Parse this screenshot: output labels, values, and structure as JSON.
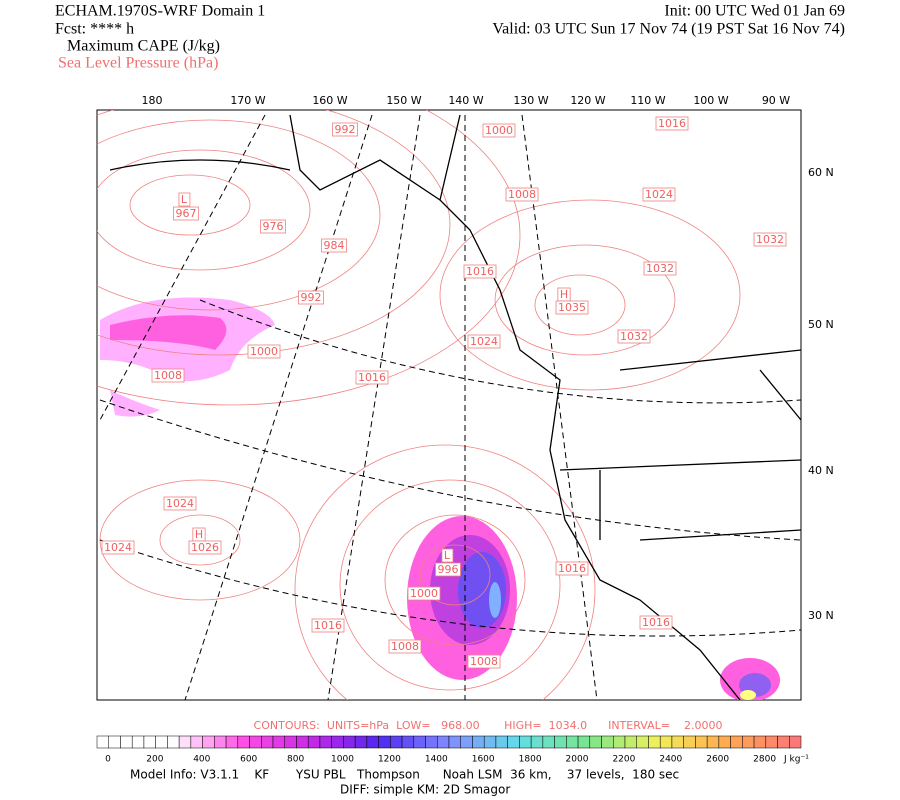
{
  "header": {
    "title": "ECHAM.1970S-WRF Domain 1",
    "forecast": "Fcst: **** h",
    "field": "Maximum CAPE (J/kg)",
    "overlay": "Sea Level Pressure (hPa)",
    "init": "Init: 00 UTC Wed 01 Jan 69",
    "valid": "Valid: 03 UTC Sun 17 Nov 74 (19 PST Sat 16 Nov 74)"
  },
  "map": {
    "lon_labels": [
      "180",
      "170 W",
      "160 W",
      "150 W",
      "140 W",
      "130 W",
      "120 W",
      "110 W",
      "100 W",
      "90 W"
    ],
    "lat_labels": [
      "60 N",
      "50 N",
      "40 N",
      "30 N"
    ],
    "contour_labels": [
      "992",
      "1000",
      "1016",
      "L",
      "967",
      "976",
      "984",
      "1008",
      "1024",
      "1032",
      "1032",
      "H",
      "1035",
      "1032",
      "992",
      "1024",
      "1016",
      "1000",
      "1016",
      "1008",
      "1024",
      "H",
      "1026",
      "1024",
      "L",
      "996",
      "1000",
      "1016",
      "1016",
      "1008",
      "1008",
      "1016"
    ]
  },
  "contour_info": "CONTOURS:  UNITS=hPa  LOW=   968.00       HIGH=  1034.0      INTERVAL=    2.0000",
  "colorbar": {
    "labels": [
      "0",
      "200",
      "400",
      "600",
      "800",
      "1000",
      "1200",
      "1400",
      "1600",
      "1800",
      "2000",
      "2200",
      "2400",
      "2600",
      "2800"
    ],
    "units": "J kg⁻¹"
  },
  "footer": {
    "line1": "Model Info: V3.1.1    KF       YSU PBL   Thompson      Noah LSM  36 km,    37 levels,  180 sec",
    "line2": "DIFF: simple KM: 2D Smagor"
  }
}
